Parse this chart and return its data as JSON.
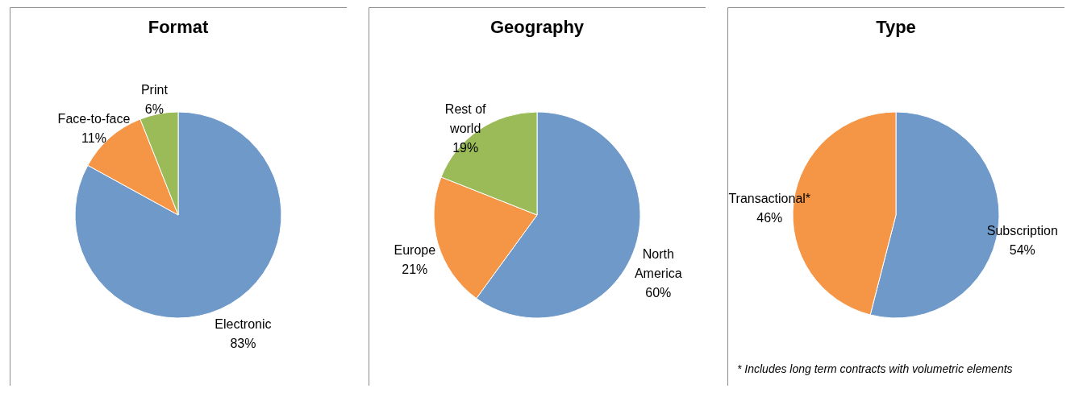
{
  "chart_data": [
    {
      "type": "pie",
      "title": "Format",
      "categories": [
        "Electronic",
        "Face-to-face",
        "Print"
      ],
      "values": [
        83,
        11,
        6
      ],
      "value_labels": [
        "83%",
        "11%",
        "6%"
      ],
      "colors": [
        "#6f99c9",
        "#f59646",
        "#9bbb59"
      ]
    },
    {
      "type": "pie",
      "title": "Geography",
      "categories": [
        "North America",
        "Europe",
        "Rest of world"
      ],
      "values": [
        60,
        21,
        19
      ],
      "value_labels": [
        "60%",
        "21%",
        "19%"
      ],
      "colors": [
        "#6f99c9",
        "#f59646",
        "#9bbb59"
      ]
    },
    {
      "type": "pie",
      "title": "Type",
      "categories": [
        "Subscription",
        "Transactional*"
      ],
      "values": [
        54,
        46
      ],
      "value_labels": [
        "54%",
        "46%"
      ],
      "colors": [
        "#6f99c9",
        "#f59646"
      ],
      "annotations": [
        "* Includes long term contracts with volumetric elements"
      ]
    }
  ]
}
